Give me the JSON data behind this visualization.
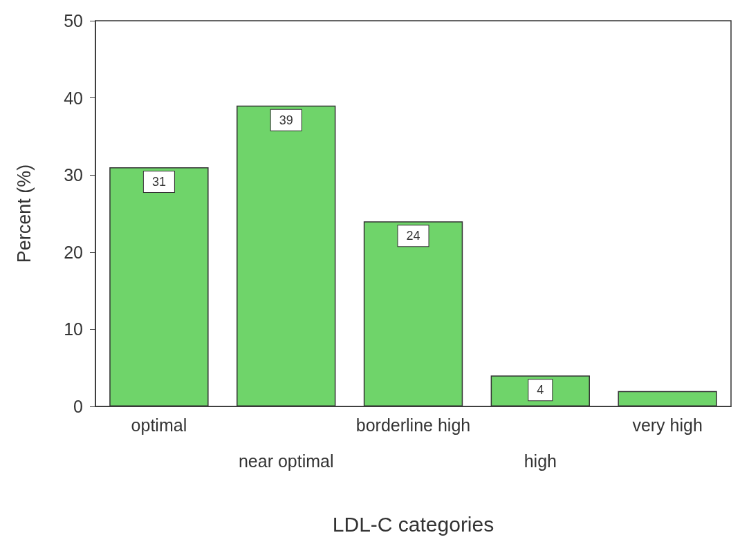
{
  "chart_data": {
    "type": "bar",
    "xlabel": "LDL-C categories",
    "ylabel": "Percent (%)",
    "categories": [
      "optimal",
      "near optimal",
      "borderline high",
      "high",
      "very high"
    ],
    "values": [
      31,
      39,
      24,
      4,
      2
    ],
    "value_labels": [
      "31",
      "39",
      "24",
      "4",
      null
    ],
    "color": "#6fd46a",
    "ylim": [
      0,
      50
    ],
    "yticks": [
      0,
      10,
      20,
      30,
      40,
      50
    ],
    "grid": false
  }
}
